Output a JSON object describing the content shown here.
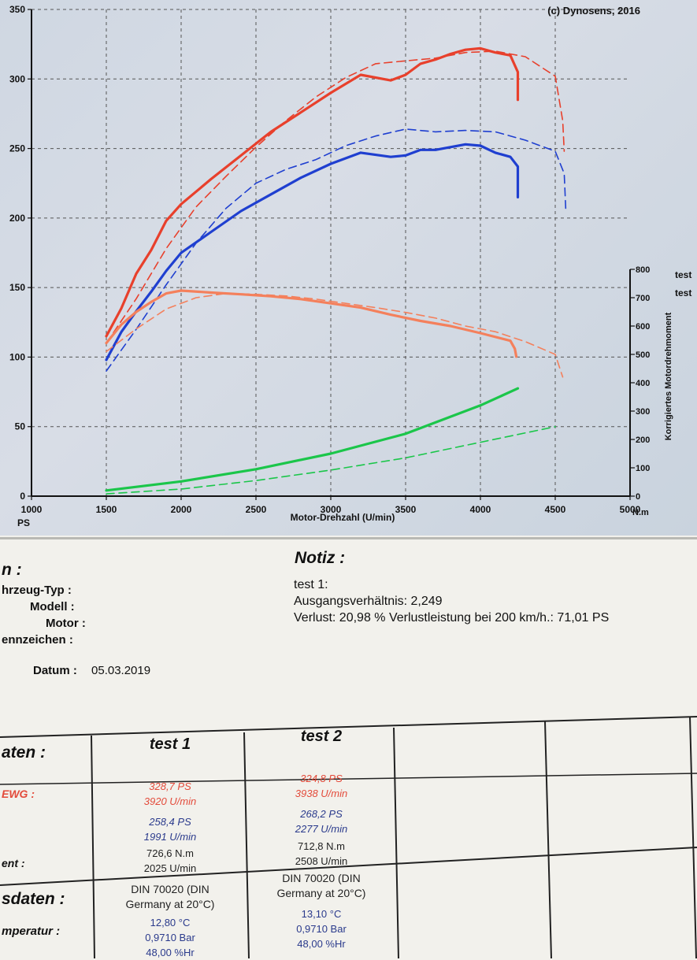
{
  "copyright": "(c) Dynosens, 2016",
  "chart_data": {
    "type": "line",
    "xlabel": "Motor-Drehzahl (U/min)",
    "xlim": [
      1000,
      5000
    ],
    "x_ticks": [
      "1000",
      "1500",
      "2000",
      "2500",
      "3000",
      "3500",
      "4000",
      "4500",
      "5000"
    ],
    "ylabel_left": "PS",
    "ylim_left": [
      0,
      350
    ],
    "y_ticks_left": [
      "0",
      "50",
      "100",
      "150",
      "200",
      "250",
      "300",
      "350"
    ],
    "ylabel_right": "Korrigiertes Motordrehmoment",
    "right_unit": "N.m",
    "ylim_right": [
      0,
      800
    ],
    "y_ticks_right": [
      "0",
      "100",
      "200",
      "300",
      "400",
      "500",
      "600",
      "700",
      "800"
    ],
    "legend": [
      "test",
      "test"
    ],
    "grid": true,
    "series": [
      {
        "name": "test 1",
        "color": "#e8402c",
        "style": "solid",
        "axis": "left",
        "x": [
          1500,
          1600,
          1700,
          1800,
          1900,
          2000,
          2200,
          2400,
          2600,
          2800,
          3000,
          3200,
          3400,
          3500,
          3600,
          3700,
          3800,
          3900,
          4000,
          4100,
          4200,
          4250,
          4250
        ],
        "values": [
          115,
          135,
          160,
          177,
          198,
          210,
          228,
          245,
          262,
          276,
          290,
          303,
          299,
          303,
          311,
          314,
          318,
          321,
          322,
          319,
          317,
          305,
          285
        ]
      },
      {
        "name": "test 2",
        "color": "#e8402c",
        "style": "dashed",
        "axis": "left",
        "x": [
          1500,
          1700,
          1900,
          2100,
          2300,
          2500,
          2700,
          2900,
          3100,
          3300,
          3500,
          3700,
          3900,
          4100,
          4300,
          4500,
          4550,
          4560
        ],
        "values": [
          110,
          142,
          178,
          208,
          230,
          251,
          270,
          287,
          301,
          311,
          313,
          315,
          319,
          320,
          316,
          302,
          270,
          248
        ]
      },
      {
        "name": "test 1",
        "color": "#1f3fd0",
        "style": "solid",
        "axis": "left",
        "x": [
          1500,
          1600,
          1700,
          1800,
          1900,
          2000,
          2200,
          2400,
          2600,
          2800,
          3000,
          3200,
          3400,
          3500,
          3600,
          3700,
          3800,
          3900,
          4000,
          4100,
          4200,
          4250,
          4250
        ],
        "values": [
          98,
          118,
          133,
          147,
          162,
          175,
          190,
          205,
          217,
          229,
          239,
          247,
          244,
          245,
          249,
          249,
          251,
          253,
          252,
          247,
          244,
          237,
          215
        ]
      },
      {
        "name": "test 2",
        "color": "#1f3fd0",
        "style": "dashed",
        "axis": "left",
        "x": [
          1500,
          1700,
          1900,
          2100,
          2300,
          2500,
          2700,
          2900,
          3100,
          3300,
          3500,
          3700,
          3900,
          4100,
          4300,
          4500,
          4560,
          4570
        ],
        "values": [
          90,
          120,
          152,
          182,
          207,
          225,
          235,
          242,
          252,
          259,
          264,
          262,
          263,
          262,
          256,
          248,
          232,
          207
        ]
      },
      {
        "name": "test 1",
        "color": "#f4805c",
        "style": "solid",
        "axis": "right",
        "x": [
          1500,
          1600,
          1700,
          1800,
          1900,
          2000,
          2200,
          2400,
          2600,
          2800,
          3000,
          3200,
          3400,
          3600,
          3800,
          4000,
          4200,
          4230,
          4240
        ],
        "values": [
          540,
          605,
          650,
          685,
          715,
          725,
          718,
          712,
          705,
          695,
          680,
          665,
          640,
          618,
          600,
          575,
          548,
          520,
          492
        ]
      },
      {
        "name": "test 2",
        "color": "#f4805c",
        "style": "dashed",
        "axis": "right",
        "x": [
          1500,
          1700,
          1900,
          2100,
          2300,
          2500,
          2700,
          2900,
          3100,
          3300,
          3500,
          3700,
          3900,
          4100,
          4300,
          4500,
          4550
        ],
        "values": [
          510,
          590,
          660,
          700,
          715,
          712,
          706,
          695,
          680,
          665,
          648,
          628,
          600,
          580,
          545,
          500,
          420
        ]
      },
      {
        "name": "test 1",
        "color": "#1bc64a",
        "style": "solid",
        "axis": "right",
        "x": [
          1500,
          2000,
          2500,
          3000,
          3500,
          4000,
          4250
        ],
        "values": [
          20,
          52,
          95,
          150,
          220,
          320,
          380
        ]
      },
      {
        "name": "test 2",
        "color": "#1bc64a",
        "style": "dashed",
        "axis": "right",
        "x": [
          1500,
          2000,
          2500,
          3000,
          3500,
          4000,
          4500
        ],
        "values": [
          8,
          25,
          55,
          92,
          135,
          190,
          245
        ]
      }
    ]
  },
  "info": {
    "left_title": "n :",
    "labels": [
      "hrzeug-Typ :",
      "Modell :",
      "Motor :",
      "ennzeichen :"
    ],
    "date_label": "Datum :",
    "date_value": "05.03.2019",
    "notiz_title": "Notiz :",
    "notes": [
      "test 1:",
      "Ausgangsverhältnis: 2,249",
      "Verlust: 20,98 %  Verlustleistung bei 200 km/h.: 71,01 PS"
    ]
  },
  "table": {
    "section1_label": "aten :",
    "section2_label": "sdaten :",
    "row_labels": [
      "EWG :",
      "ent :",
      "mperatur :"
    ],
    "columns": [
      {
        "header": "test 1",
        "max_power": "328,7 PS",
        "max_power_rpm": "3920 U/min",
        "power2": "258,4 PS",
        "power2_rpm": "1991 U/min",
        "torque": "726,6 N.m",
        "torque_rpm": "2025 U/min",
        "norm": "DIN 70020 (DIN Germany at 20°C)",
        "temp": "12,80 °C",
        "pressure": "0,9710 Bar",
        "humidity": "48,00 %Hr"
      },
      {
        "header": "test 2",
        "max_power": "324,8 PS",
        "max_power_rpm": "3938 U/min",
        "power2": "268,2 PS",
        "power2_rpm": "2277 U/min",
        "torque": "712,8 N.m",
        "torque_rpm": "2508 U/min",
        "norm": "DIN 70020 (DIN Germany at 20°C)",
        "temp": "13,10 °C",
        "pressure": "0,9710 Bar",
        "humidity": "48,00 %Hr"
      }
    ]
  }
}
